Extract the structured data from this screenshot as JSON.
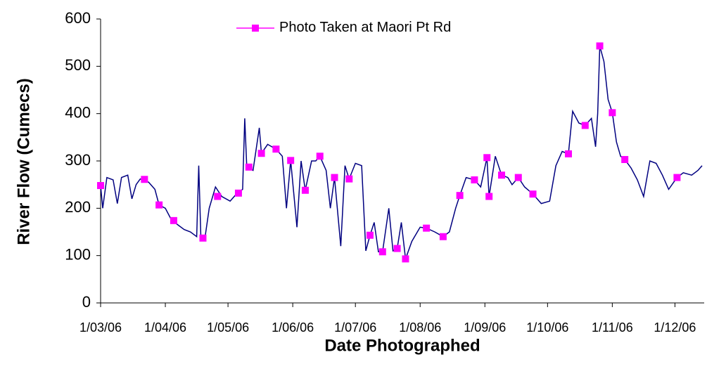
{
  "chart_data": {
    "type": "line",
    "x_label": "Date Photographed",
    "y_label": "River Flow (Cumecs)",
    "xlim": [
      "1/03/06",
      "15/12/06"
    ],
    "xticks": [
      "1/03/06",
      "1/04/06",
      "1/05/06",
      "1/06/06",
      "1/07/06",
      "1/08/06",
      "1/09/06",
      "1/10/06",
      "1/11/06",
      "1/12/06"
    ],
    "ylim": [
      0,
      600
    ],
    "yticks": [
      0,
      100,
      200,
      300,
      400,
      500,
      600
    ],
    "series": [
      {
        "color": "#000080",
        "x": [
          "1/03/06",
          "2/03/06",
          "4/03/06",
          "7/03/06",
          "9/03/06",
          "11/03/06",
          "14/03/06",
          "16/03/06",
          "18/03/06",
          "20/03/06",
          "24/03/06",
          "27/03/06",
          "29/03/06",
          "1/04/06",
          "4/04/06",
          "7/04/06",
          "10/04/06",
          "13/04/06",
          "16/04/06",
          "17/04/06",
          "18/04/06",
          "20/04/06",
          "22/04/06",
          "25/04/06",
          "28/04/06",
          "2/05/06",
          "5/05/06",
          "8/05/06",
          "9/05/06",
          "10/05/06",
          "13/05/06",
          "16/05/06",
          "17/05/06",
          "20/05/06",
          "24/05/06",
          "27/05/06",
          "29/05/06",
          "31/05/06",
          "3/06/06",
          "5/06/06",
          "7/06/06",
          "10/06/06",
          "12/06/06",
          "14/06/06",
          "17/06/06",
          "19/06/06",
          "21/06/06",
          "24/06/06",
          "26/06/06",
          "28/06/06",
          "1/07/06",
          "4/07/06",
          "6/07/06",
          "8/07/06",
          "10/07/06",
          "12/07/06",
          "14/07/06",
          "17/07/06",
          "19/07/06",
          "21/07/06",
          "23/07/06",
          "25/07/06",
          "28/07/06",
          "1/08/06",
          "4/08/06",
          "8/08/06",
          "12/08/06",
          "15/08/06",
          "18/08/06",
          "20/08/06",
          "23/08/06",
          "27/08/06",
          "30/08/06",
          "2/09/06",
          "3/09/06",
          "6/09/06",
          "9/09/06",
          "12/09/06",
          "14/09/06",
          "17/09/06",
          "20/09/06",
          "24/09/06",
          "28/09/06",
          "2/10/06",
          "5/10/06",
          "8/10/06",
          "11/10/06",
          "13/10/06",
          "16/10/06",
          "19/10/06",
          "22/10/06",
          "24/10/06",
          "25/10/06",
          "26/10/06",
          "28/10/06",
          "30/10/06",
          "1/11/06",
          "3/11/06",
          "5/11/06",
          "7/11/06",
          "10/11/06",
          "13/11/06",
          "16/11/06",
          "19/11/06",
          "22/11/06",
          "25/11/06",
          "28/11/06",
          "2/12/06",
          "5/12/06",
          "9/12/06",
          "12/12/06",
          "14/12/06"
        ],
        "values": [
          248,
          200,
          265,
          260,
          210,
          265,
          270,
          220,
          250,
          262,
          255,
          240,
          207,
          200,
          175,
          165,
          155,
          150,
          140,
          290,
          140,
          138,
          200,
          245,
          225,
          215,
          230,
          240,
          390,
          287,
          280,
          370,
          316,
          335,
          325,
          310,
          200,
          301,
          160,
          300,
          238,
          300,
          300,
          310,
          280,
          200,
          265,
          120,
          290,
          262,
          295,
          290,
          110,
          143,
          170,
          108,
          108,
          200,
          110,
          115,
          170,
          93,
          130,
          160,
          158,
          150,
          140,
          150,
          200,
          227,
          265,
          260,
          245,
          307,
          225,
          310,
          270,
          265,
          250,
          265,
          245,
          230,
          210,
          215,
          290,
          320,
          315,
          405,
          380,
          375,
          390,
          330,
          400,
          543,
          510,
          430,
          402,
          340,
          310,
          303,
          285,
          260,
          225,
          300,
          295,
          270,
          240,
          265,
          275,
          270,
          280,
          290
        ]
      },
      {
        "name": "Photo Taken at Maori Pt Rd",
        "color": "#ff00ff",
        "x": [
          "1/03/06",
          "22/03/06",
          "29/03/06",
          "5/04/06",
          "19/04/06",
          "26/04/06",
          "6/05/06",
          "11/05/06",
          "17/05/06",
          "24/05/06",
          "31/05/06",
          "7/06/06",
          "14/06/06",
          "21/06/06",
          "28/06/06",
          "8/07/06",
          "14/07/06",
          "21/07/06",
          "25/07/06",
          "4/08/06",
          "12/08/06",
          "20/08/06",
          "27/08/06",
          "2/09/06",
          "3/09/06",
          "9/09/06",
          "17/09/06",
          "24/09/06",
          "11/10/06",
          "19/10/06",
          "26/10/06",
          "1/11/06",
          "7/11/06",
          "2/12/06"
        ],
        "values": [
          248,
          261,
          207,
          174,
          137,
          225,
          232,
          287,
          316,
          325,
          301,
          238,
          310,
          265,
          262,
          143,
          108,
          115,
          93,
          158,
          140,
          227,
          260,
          307,
          225,
          270,
          265,
          230,
          315,
          375,
          543,
          402,
          303,
          265
        ]
      }
    ]
  }
}
